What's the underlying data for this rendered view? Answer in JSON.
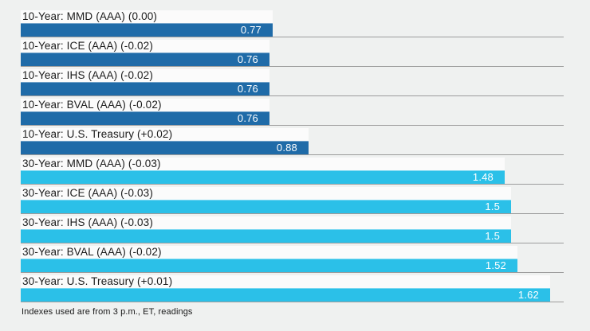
{
  "chart_data": {
    "type": "bar",
    "orientation": "horizontal",
    "title": "",
    "xlabel": "",
    "ylabel": "",
    "xlim": [
      0,
      1.66
    ],
    "grid": false,
    "legend": false,
    "categories": [
      "10-Year: MMD (AAA) (0.00)",
      "10-Year: ICE (AAA) (-0.02)",
      "10-Year: IHS (AAA) (-0.02)",
      "10-Year: BVAL (AAA) (-0.02)",
      "10-Year: U.S. Treasury (+0.02)",
      "30-Year: MMD (AAA) (-0.03)",
      "30-Year: ICE (AAA) (-0.03)",
      "30-Year: IHS (AAA) (-0.03)",
      "30-Year: BVAL (AAA) (-0.02)",
      "30-Year: U.S. Treasury (+0.01)"
    ],
    "values": [
      0.77,
      0.76,
      0.76,
      0.76,
      0.88,
      1.48,
      1.5,
      1.5,
      1.52,
      1.62
    ],
    "bars": [
      {
        "label": "10-Year: MMD (AAA) (0.00)",
        "value": 0.77,
        "display": "0.77",
        "group": "10-year"
      },
      {
        "label": "10-Year: ICE (AAA) (-0.02)",
        "value": 0.76,
        "display": "0.76",
        "group": "10-year"
      },
      {
        "label": "10-Year: IHS (AAA) (-0.02)",
        "value": 0.76,
        "display": "0.76",
        "group": "10-year"
      },
      {
        "label": "10-Year: BVAL (AAA) (-0.02)",
        "value": 0.76,
        "display": "0.76",
        "group": "10-year"
      },
      {
        "label": "10-Year: U.S. Treasury (+0.02)",
        "value": 0.88,
        "display": "0.88",
        "group": "10-year"
      },
      {
        "label": "30-Year: MMD (AAA) (-0.03)",
        "value": 1.48,
        "display": "1.48",
        "group": "30-year"
      },
      {
        "label": "30-Year: ICE (AAA) (-0.03)",
        "value": 1.5,
        "display": "1.5",
        "group": "30-year"
      },
      {
        "label": "30-Year: IHS (AAA) (-0.03)",
        "value": 1.5,
        "display": "1.5",
        "group": "30-year"
      },
      {
        "label": "30-Year: BVAL (AAA) (-0.02)",
        "value": 1.52,
        "display": "1.52",
        "group": "30-year"
      },
      {
        "label": "30-Year: U.S. Treasury (+0.01)",
        "value": 1.62,
        "display": "1.62",
        "group": "30-year"
      }
    ],
    "note": "Indexes used are from 3 p.m., ET, readings",
    "colors": {
      "ten_year_bar": "#1f6ba8",
      "thirty_year_bar": "#2bc0e8",
      "separator_line": "#9c9c9c",
      "label_background": "#fbfbfb",
      "page_background": "#eff1f0",
      "value_text": "#ffffff",
      "label_text": "#1b1b1b"
    }
  }
}
